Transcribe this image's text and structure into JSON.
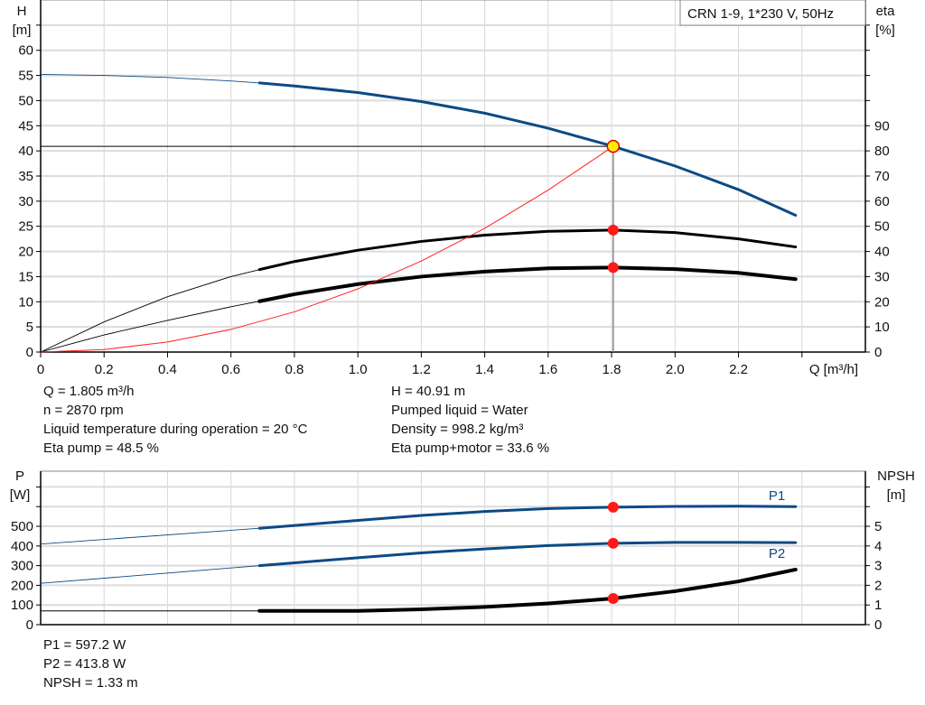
{
  "chart_data": [
    {
      "type": "line",
      "title": "CRN 1-9, 1*230 V, 50Hz",
      "xlabel": "Q [m³/h]",
      "ylabel_left": "H",
      "ylabel_left_unit": "[m]",
      "ylabel_right": "eta",
      "ylabel_right_unit": "[%]",
      "xlim": [
        0,
        2.6
      ],
      "ylim": [
        0,
        70
      ],
      "ylim_right": [
        0,
        140
      ],
      "grid": true,
      "x_ticks": [
        "0",
        "0.2",
        "0.4",
        "0.6",
        "0.8",
        "1.0",
        "1.2",
        "1.4",
        "1.6",
        "1.8",
        "2.0",
        "2.2"
      ],
      "y_ticks": [
        "0",
        "5",
        "10",
        "15",
        "20",
        "25",
        "30",
        "35",
        "40",
        "45",
        "50",
        "55",
        "60"
      ],
      "y_right_ticks": [
        "0",
        "10",
        "20",
        "30",
        "40",
        "50",
        "60",
        "70",
        "80",
        "90"
      ],
      "series": [
        {
          "key": "H",
          "axis": "left",
          "color": "#0b4a85",
          "thick_from": 0.69,
          "x": [
            0,
            0.2,
            0.4,
            0.6,
            0.69,
            0.8,
            1.0,
            1.2,
            1.4,
            1.6,
            1.805,
            2.0,
            2.2,
            2.38
          ],
          "y": [
            55.2,
            55.0,
            54.6,
            53.9,
            53.5,
            52.9,
            51.6,
            49.8,
            47.5,
            44.5,
            40.91,
            37.0,
            32.3,
            27.2
          ]
        },
        {
          "key": "eta_pump",
          "axis": "right",
          "color": "#000000",
          "thick_from": 0.69,
          "x": [
            0,
            0.2,
            0.4,
            0.6,
            0.69,
            0.8,
            1.0,
            1.2,
            1.4,
            1.6,
            1.805,
            2.0,
            2.2,
            2.38
          ],
          "y": [
            0,
            12,
            22,
            30,
            32.8,
            36,
            40.5,
            44,
            46.5,
            48,
            48.5,
            47.5,
            45,
            41.8
          ]
        },
        {
          "key": "eta_pump_motor",
          "axis": "right",
          "color": "#000000",
          "thick_from": 0.69,
          "x": [
            0,
            0.2,
            0.4,
            0.6,
            0.69,
            0.8,
            1.0,
            1.2,
            1.4,
            1.6,
            1.805,
            2.0,
            2.2,
            2.38
          ],
          "y": [
            0,
            6.8,
            12.6,
            18,
            20.2,
            23,
            27,
            30,
            32,
            33.3,
            33.6,
            33,
            31.5,
            29
          ]
        },
        {
          "key": "system_curve",
          "axis": "left",
          "color": "#ff2020",
          "x": [
            0,
            0.2,
            0.4,
            0.6,
            0.8,
            1.0,
            1.2,
            1.4,
            1.6,
            1.805
          ],
          "y": [
            0,
            0.5,
            2.0,
            4.5,
            8.0,
            12.56,
            18.1,
            24.6,
            32.2,
            40.91
          ]
        }
      ],
      "duty_point": {
        "Q": 1.805,
        "H": 40.91,
        "eta_pump": 48.5,
        "eta_pump_motor": 33.6
      }
    },
    {
      "type": "line",
      "xlim": [
        0,
        2.6
      ],
      "ylim": [
        0,
        780
      ],
      "ylim_right": [
        0,
        7.8
      ],
      "grid": true,
      "ylabel_left": "P",
      "ylabel_left_unit": "[W]",
      "ylabel_right": "NPSH",
      "ylabel_right_unit": "[m]",
      "y_ticks": [
        "0",
        "100",
        "200",
        "300",
        "400",
        "500"
      ],
      "y_right_ticks": [
        "0",
        "1",
        "2",
        "3",
        "4",
        "5"
      ],
      "series": [
        {
          "key": "P1",
          "name": "P1",
          "axis": "left",
          "color": "#0b4a85",
          "thick_from": 0.69,
          "x": [
            0,
            0.69,
            1.0,
            1.2,
            1.4,
            1.6,
            1.805,
            2.0,
            2.2,
            2.38
          ],
          "y": [
            410,
            490,
            530,
            555,
            575,
            590,
            597.2,
            601,
            602,
            600
          ]
        },
        {
          "key": "P2",
          "name": "P2",
          "axis": "left",
          "color": "#0b4a85",
          "thick_from": 0.69,
          "x": [
            0,
            0.69,
            1.0,
            1.2,
            1.4,
            1.6,
            1.805,
            2.0,
            2.2,
            2.38
          ],
          "y": [
            210,
            300,
            340,
            365,
            385,
            402,
            413.8,
            418,
            418,
            417
          ]
        },
        {
          "key": "NPSH",
          "axis": "right",
          "color": "#000000",
          "thick_from": 0.69,
          "x": [
            0,
            0.69,
            1.0,
            1.2,
            1.4,
            1.6,
            1.805,
            2.0,
            2.2,
            2.38
          ],
          "y": [
            0.7,
            0.7,
            0.7,
            0.78,
            0.9,
            1.08,
            1.33,
            1.7,
            2.2,
            2.8
          ]
        }
      ],
      "duty_point": {
        "Q": 1.805,
        "P1": 597.2,
        "P2": 413.8,
        "NPSH": 1.33
      }
    }
  ],
  "readout_top": [
    "Q = 1.805 m³/h",
    "n = 2870 rpm",
    "Liquid temperature during operation = 20 °C",
    "Eta pump = 48.5 %"
  ],
  "readout_top_right": [
    "H = 40.91 m",
    "Pumped liquid = Water",
    "Density = 998.2 kg/m³",
    "Eta pump+motor = 33.6 %"
  ],
  "readout_bottom": [
    "P1 = 597.2 W",
    "P2 = 413.8 W",
    "NPSH = 1.33 m"
  ]
}
